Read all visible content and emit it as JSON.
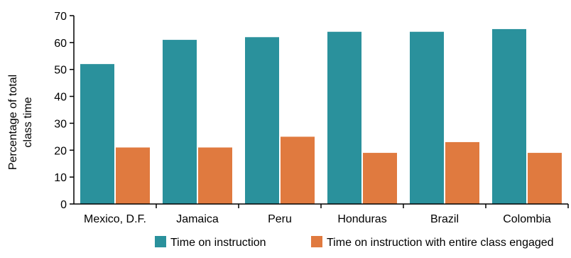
{
  "chart_data": {
    "type": "bar",
    "title": "",
    "xlabel": "",
    "ylabel_lines": [
      "Percentage of total",
      "class time"
    ],
    "categories": [
      "Mexico, D.F.",
      "Jamaica",
      "Peru",
      "Honduras",
      "Brazil",
      "Colombia"
    ],
    "series": [
      {
        "name": "Time on instruction",
        "color": "#2a919c",
        "values": [
          52,
          61,
          62,
          64,
          64,
          65
        ]
      },
      {
        "name": "Time on instruction with entire class engaged",
        "color": "#e07a3f",
        "values": [
          21,
          21,
          25,
          19,
          23,
          19
        ]
      }
    ],
    "ylim": [
      0,
      70
    ],
    "yticks": [
      0,
      10,
      20,
      30,
      40,
      50,
      60,
      70
    ],
    "grid": false,
    "legend_position": "bottom"
  }
}
